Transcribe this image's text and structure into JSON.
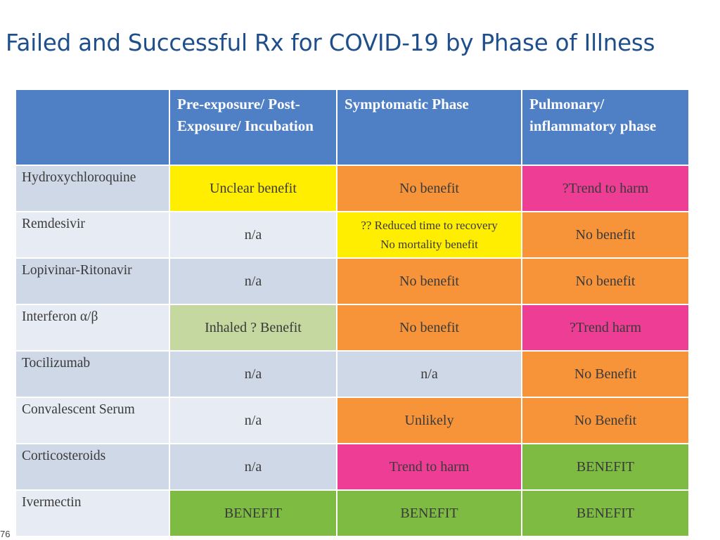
{
  "title": "Failed and Successful Rx for COVID-19 by Phase of Illness",
  "colors": {
    "header_blue": "#4f7fc5",
    "yellow": "#ffee00",
    "orange": "#f79439",
    "pink": "#ee3d95",
    "green": "#7dbb42",
    "light_green": "#c4d89f",
    "row_shade_dark": "#cfd8e6",
    "row_shade_light": "#e7ebf3"
  },
  "table": {
    "headers": [
      "",
      "Pre-exposure/ Post-Exposure/ Incubation",
      "Symptomatic Phase",
      "Pulmonary/ inflammatory phase"
    ],
    "rows": [
      {
        "drug": "Hydroxychloroquine",
        "cells": [
          {
            "text": "Unclear benefit",
            "color": "yellow"
          },
          {
            "text": "No benefit",
            "color": "orange"
          },
          {
            "text": "?Trend to harm",
            "color": "pink"
          }
        ]
      },
      {
        "drug": "Remdesivir",
        "cells": [
          {
            "text": "n/a",
            "color": "none"
          },
          {
            "text": "?? Reduced time to recovery",
            "text2": "No mortality benefit",
            "color": "yellow"
          },
          {
            "text": "No benefit",
            "color": "orange"
          }
        ]
      },
      {
        "drug": "Lopivinar-Ritonavir",
        "cells": [
          {
            "text": "n/a",
            "color": "none"
          },
          {
            "text": "No benefit",
            "color": "orange"
          },
          {
            "text": "No benefit",
            "color": "orange"
          }
        ]
      },
      {
        "drug": "Interferon α/β",
        "cells": [
          {
            "text": "Inhaled ? Benefit",
            "color": "light_green"
          },
          {
            "text": "No benefit",
            "color": "orange"
          },
          {
            "text": "?Trend harm",
            "color": "pink"
          }
        ]
      },
      {
        "drug": "Tocilizumab",
        "cells": [
          {
            "text": "n/a",
            "color": "none"
          },
          {
            "text": "n/a",
            "color": "none"
          },
          {
            "text": "No Benefit",
            "color": "orange"
          }
        ]
      },
      {
        "drug": "Convalescent Serum",
        "cells": [
          {
            "text": "n/a",
            "color": "none"
          },
          {
            "text": "Unlikely",
            "color": "orange"
          },
          {
            "text": "No Benefit",
            "color": "orange"
          }
        ]
      },
      {
        "drug": "Corticosteroids",
        "cells": [
          {
            "text": "n/a",
            "color": "none"
          },
          {
            "text": "Trend to harm",
            "color": "pink"
          },
          {
            "text": "BENEFIT",
            "color": "green"
          }
        ]
      },
      {
        "drug": "Ivermectin",
        "cells": [
          {
            "text": "BENEFIT",
            "color": "green"
          },
          {
            "text": "BENEFIT",
            "color": "green"
          },
          {
            "text": "BENEFIT",
            "color": "green"
          }
        ]
      }
    ]
  },
  "footer_mark": "76"
}
